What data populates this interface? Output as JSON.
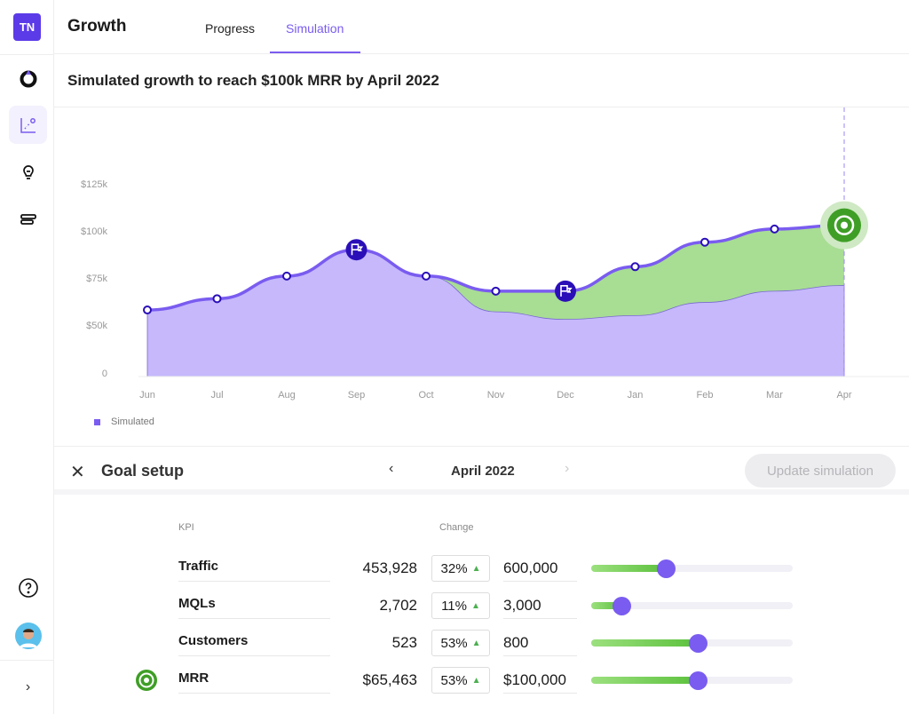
{
  "app": {
    "logo": "TN",
    "title": "Growth"
  },
  "tabs": [
    {
      "label": "Progress",
      "active": false
    },
    {
      "label": "Simulation",
      "active": true
    }
  ],
  "sidebar": {
    "items": [
      {
        "icon": "drop-ring-icon"
      },
      {
        "icon": "scatter-chart-icon",
        "active": true
      },
      {
        "icon": "lightbulb-icon"
      },
      {
        "icon": "stack-icon"
      }
    ],
    "bottom": [
      {
        "icon": "help-icon"
      },
      {
        "icon": "avatar"
      },
      {
        "icon": "chevron-right-icon"
      }
    ]
  },
  "subtitle": "Simulated growth to reach $100k MRR by April 2022",
  "colors": {
    "accent": "#7a5cf0",
    "fill_simulated": "#c6b8fb",
    "fill_gain": "#a8dd94",
    "marker": "#2a0fb8",
    "target": "#3f9e26"
  },
  "chart_data": {
    "type": "area",
    "categories": [
      "Jun",
      "Jul",
      "Aug",
      "Sep",
      "Oct",
      "Nov",
      "Dec",
      "Jan",
      "Feb",
      "Mar",
      "Apr"
    ],
    "yticks": [
      0,
      50,
      75,
      100,
      125
    ],
    "ytick_labels": [
      "0",
      "$50k",
      "$75k",
      "$100k",
      "$125k"
    ],
    "series": [
      {
        "name": "Simulated",
        "values": [
          58,
          64,
          76,
          90,
          76,
          68,
          68,
          81,
          94,
          101,
          103
        ]
      },
      {
        "values": [
          58,
          64,
          76,
          90,
          76,
          57,
          53,
          55,
          62,
          68,
          71
        ]
      }
    ],
    "markers": [
      {
        "category": "Sep",
        "icon": "flag-icon"
      },
      {
        "category": "Dec",
        "icon": "flag-icon"
      },
      {
        "category": "Apr",
        "icon": "target-icon"
      }
    ],
    "legend": {
      "label": "Simulated",
      "placement": "bottom-left"
    },
    "grid": false
  },
  "goal": {
    "close_icon": "close-icon",
    "title": "Goal setup",
    "month": "April 2022",
    "prev": "‹",
    "next": "›",
    "update_label": "Update simulation"
  },
  "table": {
    "headers": {
      "kpi": "KPI",
      "change": "Change"
    },
    "rows": [
      {
        "kpi": "Traffic",
        "current": "453,928",
        "change": "32%",
        "target": "600,000",
        "slider": 0.37
      },
      {
        "kpi": "MQLs",
        "current": "2,702",
        "change": "11%",
        "target": "3,000",
        "slider": 0.15
      },
      {
        "kpi": "Customers",
        "current": "523",
        "change": "53%",
        "target": "800",
        "slider": 0.53
      },
      {
        "kpi": "MRR",
        "current": "$65,463",
        "change": "53%",
        "target": "$100,000",
        "slider": 0.53,
        "goal": true
      }
    ]
  }
}
